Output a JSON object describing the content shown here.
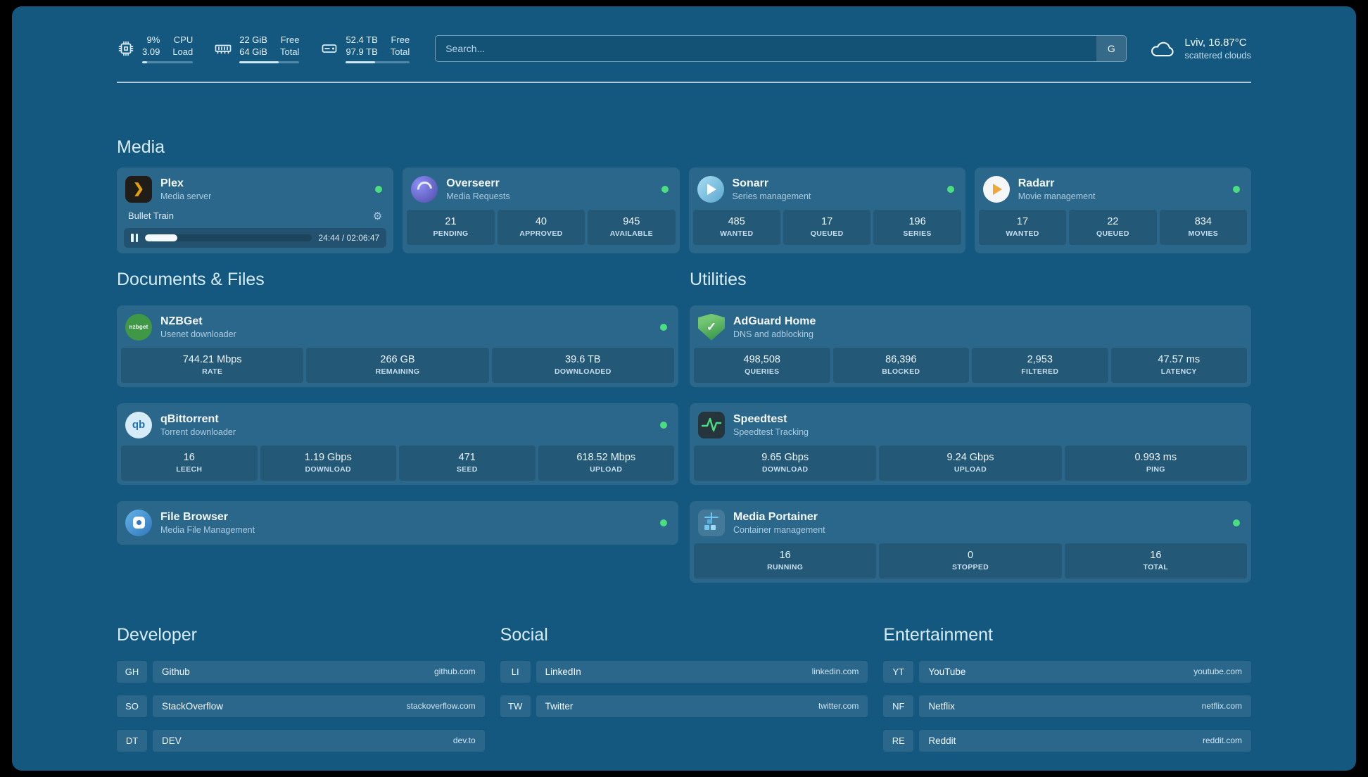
{
  "icons": {
    "plex_glyph": "❯",
    "nzbget_label": "nzbget",
    "qbittorrent_label": "qb",
    "adguard_check": "✓",
    "gear": "⚙"
  },
  "header": {
    "resources": {
      "cpu": {
        "value_top": "9%",
        "value_bottom": "3.09",
        "label_top": "CPU",
        "label_bottom": "Load",
        "progress": 9
      },
      "memory": {
        "value_top": "22 GiB",
        "value_bottom": "64 GiB",
        "label_top": "Free",
        "label_bottom": "Total",
        "progress": 66
      },
      "disk": {
        "value_top": "52.4 TB",
        "value_bottom": "97.9 TB",
        "label_top": "Free",
        "label_bottom": "Total",
        "progress": 46
      }
    },
    "search": {
      "placeholder": "Search...",
      "provider_button": "G"
    },
    "weather": {
      "location": "Lviv, 16.87°C",
      "condition": "scattered clouds"
    }
  },
  "media": {
    "title": "Media",
    "plex": {
      "name": "Plex",
      "description": "Media server",
      "status": "online",
      "now_playing": "Bullet Train",
      "time": "24:44 / 02:06:47",
      "progress": 19.5
    },
    "overseerr": {
      "name": "Overseerr",
      "description": "Media Requests",
      "status": "online",
      "stats": [
        {
          "value": "21",
          "label": "PENDING"
        },
        {
          "value": "40",
          "label": "APPROVED"
        },
        {
          "value": "945",
          "label": "AVAILABLE"
        }
      ]
    },
    "sonarr": {
      "name": "Sonarr",
      "description": "Series management",
      "status": "online",
      "stats": [
        {
          "value": "485",
          "label": "WANTED"
        },
        {
          "value": "17",
          "label": "QUEUED"
        },
        {
          "value": "196",
          "label": "SERIES"
        }
      ]
    },
    "radarr": {
      "name": "Radarr",
      "description": "Movie management",
      "status": "online",
      "stats": [
        {
          "value": "17",
          "label": "WANTED"
        },
        {
          "value": "22",
          "label": "QUEUED"
        },
        {
          "value": "834",
          "label": "MOVIES"
        }
      ]
    }
  },
  "documents": {
    "title": "Documents & Files",
    "nzbget": {
      "name": "NZBGet",
      "description": "Usenet downloader",
      "status": "online",
      "stats": [
        {
          "value": "744.21 Mbps",
          "label": "RATE"
        },
        {
          "value": "266 GB",
          "label": "REMAINING"
        },
        {
          "value": "39.6 TB",
          "label": "DOWNLOADED"
        }
      ]
    },
    "qbittorrent": {
      "name": "qBittorrent",
      "description": "Torrent downloader",
      "status": "online",
      "stats": [
        {
          "value": "16",
          "label": "LEECH"
        },
        {
          "value": "1.19 Gbps",
          "label": "DOWNLOAD"
        },
        {
          "value": "471",
          "label": "SEED"
        },
        {
          "value": "618.52 Mbps",
          "label": "UPLOAD"
        }
      ]
    },
    "filebrowser": {
      "name": "File Browser",
      "description": "Media File Management",
      "status": "online"
    }
  },
  "utilities": {
    "title": "Utilities",
    "adguard": {
      "name": "AdGuard Home",
      "description": "DNS and adblocking",
      "stats": [
        {
          "value": "498,508",
          "label": "QUERIES"
        },
        {
          "value": "86,396",
          "label": "BLOCKED"
        },
        {
          "value": "2,953",
          "label": "FILTERED"
        },
        {
          "value": "47.57 ms",
          "label": "LATENCY"
        }
      ]
    },
    "speedtest": {
      "name": "Speedtest",
      "description": "Speedtest Tracking",
      "stats": [
        {
          "value": "9.65 Gbps",
          "label": "DOWNLOAD"
        },
        {
          "value": "9.24 Gbps",
          "label": "UPLOAD"
        },
        {
          "value": "0.993 ms",
          "label": "PING"
        }
      ]
    },
    "portainer": {
      "name": "Media Portainer",
      "description": "Container management",
      "status": "online",
      "stats": [
        {
          "value": "16",
          "label": "RUNNING"
        },
        {
          "value": "0",
          "label": "STOPPED"
        },
        {
          "value": "16",
          "label": "TOTAL"
        }
      ]
    }
  },
  "bookmarks": {
    "developer": {
      "title": "Developer",
      "items": [
        {
          "abbr": "GH",
          "name": "Github",
          "url": "github.com"
        },
        {
          "abbr": "SO",
          "name": "StackOverflow",
          "url": "stackoverflow.com"
        },
        {
          "abbr": "DT",
          "name": "DEV",
          "url": "dev.to"
        }
      ]
    },
    "social": {
      "title": "Social",
      "items": [
        {
          "abbr": "LI",
          "name": "LinkedIn",
          "url": "linkedin.com"
        },
        {
          "abbr": "TW",
          "name": "Twitter",
          "url": "twitter.com"
        }
      ]
    },
    "entertainment": {
      "title": "Entertainment",
      "items": [
        {
          "abbr": "YT",
          "name": "YouTube",
          "url": "youtube.com"
        },
        {
          "abbr": "NF",
          "name": "Netflix",
          "url": "netflix.com"
        },
        {
          "abbr": "RE",
          "name": "Reddit",
          "url": "reddit.com"
        }
      ]
    }
  },
  "colors": {
    "background": "#15587f",
    "status_online": "#4ade80",
    "plex_orange": "#e5a00d"
  }
}
